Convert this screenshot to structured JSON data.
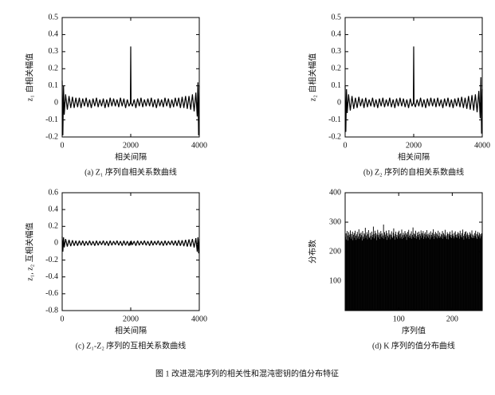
{
  "figure_caption": "图 1 改进混沌序列的相关性和混沌密钥的值分布特征",
  "chart_data": [
    {
      "type": "line",
      "caption": "(a) Z₁ 序列自相关系数曲线",
      "x_label": "相关间隔",
      "y_label": "z₁ 自相关幅值",
      "color": "#000000",
      "xlim": [
        0,
        4000
      ],
      "xticks": [
        0,
        2000,
        4000
      ],
      "ylim": [
        -0.2,
        0.5
      ],
      "yticks": [
        -0.2,
        -0.1,
        0,
        0.1,
        0.2,
        0.3,
        0.4,
        0.5
      ],
      "x": [
        0,
        20,
        40,
        60,
        100,
        150,
        200,
        250,
        300,
        350,
        400,
        450,
        500,
        550,
        600,
        650,
        700,
        750,
        800,
        850,
        900,
        950,
        1000,
        1050,
        1100,
        1150,
        1200,
        1250,
        1300,
        1350,
        1400,
        1450,
        1500,
        1550,
        1600,
        1650,
        1700,
        1750,
        1800,
        1850,
        1900,
        1950,
        1990,
        2000,
        2010,
        2050,
        2100,
        2150,
        2200,
        2250,
        2300,
        2350,
        2400,
        2450,
        2500,
        2550,
        2600,
        2650,
        2700,
        2750,
        2800,
        2850,
        2900,
        2950,
        3000,
        3050,
        3100,
        3150,
        3200,
        3250,
        3300,
        3350,
        3400,
        3450,
        3500,
        3550,
        3600,
        3650,
        3700,
        3750,
        3800,
        3850,
        3900,
        3940,
        3960,
        3980,
        4000
      ],
      "values": [
        0.13,
        -0.19,
        0.1,
        -0.07,
        0.05,
        -0.04,
        0.04,
        -0.03,
        0.035,
        -0.03,
        0.03,
        -0.025,
        0.03,
        -0.03,
        0.025,
        -0.02,
        0.03,
        -0.025,
        0.02,
        -0.03,
        0.025,
        -0.02,
        0.03,
        -0.025,
        0.02,
        -0.02,
        0.025,
        -0.03,
        0.02,
        -0.025,
        0.03,
        -0.02,
        0.025,
        -0.02,
        0.02,
        -0.025,
        0.03,
        -0.02,
        0.025,
        -0.03,
        0.02,
        -0.02,
        0.0,
        0.33,
        0.0,
        -0.02,
        0.02,
        -0.03,
        0.025,
        -0.02,
        0.03,
        -0.025,
        0.02,
        -0.02,
        0.025,
        -0.02,
        0.03,
        -0.025,
        0.02,
        -0.03,
        0.025,
        -0.02,
        0.02,
        -0.025,
        0.03,
        -0.02,
        0.025,
        -0.03,
        0.02,
        -0.025,
        0.03,
        -0.02,
        0.03,
        -0.03,
        0.035,
        -0.03,
        0.04,
        -0.035,
        0.04,
        -0.04,
        0.05,
        -0.05,
        0.06,
        -0.08,
        0.12,
        -0.19,
        0.1
      ]
    },
    {
      "type": "line",
      "caption": "(b) Z₂ 序列的自相关系数曲线",
      "x_label": "相关间隔",
      "y_label": "z₂ 自相关幅值",
      "color": "#000000",
      "xlim": [
        0,
        4000
      ],
      "xticks": [
        0,
        2000,
        4000
      ],
      "ylim": [
        -0.2,
        0.5
      ],
      "yticks": [
        -0.2,
        -0.1,
        0,
        0.1,
        0.2,
        0.3,
        0.4,
        0.5
      ],
      "x": [
        0,
        20,
        40,
        60,
        100,
        150,
        200,
        250,
        300,
        350,
        400,
        450,
        500,
        550,
        600,
        650,
        700,
        750,
        800,
        850,
        900,
        950,
        1000,
        1050,
        1100,
        1150,
        1200,
        1250,
        1300,
        1350,
        1400,
        1450,
        1500,
        1550,
        1600,
        1650,
        1700,
        1750,
        1800,
        1850,
        1900,
        1950,
        1990,
        2000,
        2010,
        2050,
        2100,
        2150,
        2200,
        2250,
        2300,
        2350,
        2400,
        2450,
        2500,
        2550,
        2600,
        2650,
        2700,
        2750,
        2800,
        2850,
        2900,
        2950,
        3000,
        3050,
        3100,
        3150,
        3200,
        3250,
        3300,
        3350,
        3400,
        3450,
        3500,
        3550,
        3600,
        3650,
        3700,
        3750,
        3800,
        3850,
        3900,
        3940,
        3960,
        3980,
        4000
      ],
      "values": [
        0.1,
        -0.17,
        0.08,
        -0.06,
        0.05,
        -0.045,
        0.04,
        -0.035,
        0.03,
        -0.03,
        0.035,
        -0.02,
        0.025,
        -0.03,
        0.03,
        -0.025,
        0.02,
        -0.02,
        0.03,
        -0.025,
        0.02,
        -0.03,
        0.025,
        -0.02,
        0.03,
        -0.025,
        0.02,
        -0.02,
        0.03,
        -0.025,
        0.02,
        -0.03,
        0.025,
        -0.02,
        0.03,
        -0.02,
        0.025,
        -0.025,
        0.02,
        -0.03,
        0.025,
        -0.02,
        0.0,
        0.33,
        0.0,
        -0.025,
        0.02,
        -0.02,
        0.03,
        -0.025,
        0.02,
        -0.03,
        0.025,
        -0.02,
        0.03,
        -0.02,
        0.025,
        -0.025,
        0.03,
        -0.02,
        0.02,
        -0.03,
        0.025,
        -0.02,
        0.03,
        -0.025,
        0.02,
        -0.03,
        0.025,
        -0.02,
        0.03,
        -0.025,
        0.035,
        -0.03,
        0.03,
        -0.035,
        0.04,
        -0.04,
        0.045,
        -0.045,
        0.05,
        -0.055,
        0.07,
        -0.09,
        0.15,
        -0.18,
        0.08
      ]
    },
    {
      "type": "line",
      "caption": "(c) Z₁-Z₂ 序列的互相关系数曲线",
      "x_label": "相关间隔",
      "y_label": "z₁, z₂ 互相关幅值",
      "color": "#000000",
      "xlim": [
        0,
        4000
      ],
      "xticks": [
        0,
        2000,
        4000
      ],
      "ylim": [
        -0.8,
        0.6
      ],
      "yticks": [
        -0.8,
        -0.6,
        -0.4,
        -0.2,
        0,
        0.2,
        0.4,
        0.6
      ],
      "x": [
        0,
        20,
        40,
        60,
        100,
        150,
        200,
        250,
        300,
        350,
        400,
        450,
        500,
        550,
        600,
        650,
        700,
        750,
        800,
        850,
        900,
        950,
        1000,
        1050,
        1100,
        1150,
        1200,
        1250,
        1300,
        1350,
        1400,
        1450,
        1500,
        1550,
        1600,
        1650,
        1700,
        1750,
        1800,
        1850,
        1900,
        1950,
        1990,
        2000,
        2010,
        2050,
        2100,
        2150,
        2200,
        2250,
        2300,
        2350,
        2400,
        2450,
        2500,
        2550,
        2600,
        2650,
        2700,
        2750,
        2800,
        2850,
        2900,
        2950,
        3000,
        3050,
        3100,
        3150,
        3200,
        3250,
        3300,
        3350,
        3400,
        3450,
        3500,
        3550,
        3600,
        3650,
        3700,
        3750,
        3800,
        3850,
        3900,
        3940,
        3960,
        3980,
        4000
      ],
      "values": [
        0.08,
        -0.1,
        0.07,
        -0.05,
        0.05,
        -0.04,
        0.04,
        -0.035,
        0.035,
        -0.03,
        0.03,
        -0.03,
        0.03,
        -0.025,
        0.03,
        -0.03,
        0.025,
        -0.025,
        0.03,
        -0.025,
        0.025,
        -0.03,
        0.03,
        -0.025,
        0.025,
        -0.02,
        0.03,
        -0.025,
        0.025,
        -0.03,
        0.03,
        -0.025,
        0.025,
        -0.02,
        0.03,
        -0.025,
        0.025,
        -0.03,
        0.03,
        -0.025,
        0.025,
        -0.03,
        0.02,
        -0.025,
        0.03,
        -0.02,
        0.025,
        -0.03,
        0.03,
        -0.025,
        0.025,
        -0.02,
        0.03,
        -0.025,
        0.025,
        -0.03,
        0.03,
        -0.025,
        0.025,
        -0.02,
        0.03,
        -0.025,
        0.025,
        -0.03,
        0.03,
        -0.025,
        0.025,
        -0.02,
        0.03,
        -0.025,
        0.03,
        -0.03,
        0.035,
        -0.03,
        0.035,
        -0.035,
        0.04,
        -0.04,
        0.045,
        -0.04,
        0.05,
        -0.05,
        0.06,
        -0.1,
        0.07,
        -0.12,
        0.05
      ]
    },
    {
      "type": "histogram",
      "caption": "(d) K 序列的值分布曲线",
      "x_label": "序列值",
      "y_label": "分布数",
      "color": "#000000",
      "xlim": [
        0,
        256
      ],
      "xticks": [
        100,
        200
      ],
      "ylim": [
        0,
        400
      ],
      "yticks": [
        100,
        200,
        300,
        400
      ],
      "bins": [
        0,
        1,
        2,
        3,
        4,
        5,
        6,
        7,
        8,
        9,
        10,
        11,
        12,
        13,
        14,
        15,
        16,
        17,
        18,
        19,
        20,
        21,
        22,
        23,
        24,
        25,
        26,
        27,
        28,
        29,
        30,
        31,
        32,
        33,
        34,
        35,
        36,
        37,
        38,
        39,
        40,
        41,
        42,
        43,
        44,
        45,
        46,
        47,
        48,
        49,
        50,
        51,
        52,
        53,
        54,
        55,
        56,
        57,
        58,
        59,
        60,
        61,
        62,
        63,
        64,
        65,
        66,
        67,
        68,
        69,
        70,
        71,
        72,
        73,
        74,
        75,
        76,
        77,
        78,
        79,
        80,
        81,
        82,
        83,
        84,
        85,
        86,
        87,
        88,
        89,
        90,
        91,
        92,
        93,
        94,
        95,
        96,
        97,
        98,
        99,
        100,
        101,
        102,
        103,
        104,
        105,
        106,
        107,
        108,
        109,
        110,
        111,
        112,
        113,
        114,
        115,
        116,
        117,
        118,
        119,
        120,
        121,
        122,
        123,
        124,
        125,
        126,
        127,
        128,
        129,
        130,
        131,
        132,
        133,
        134,
        135,
        136,
        137,
        138,
        139,
        140,
        141,
        142,
        143,
        144,
        145,
        146,
        147,
        148,
        149,
        150,
        151,
        152,
        153,
        154,
        155,
        156,
        157,
        158,
        159,
        160,
        161,
        162,
        163,
        164,
        165,
        166,
        167,
        168,
        169,
        170,
        171,
        172,
        173,
        174,
        175,
        176,
        177,
        178,
        179,
        180,
        181,
        182,
        183,
        184,
        185,
        186,
        187,
        188,
        189,
        190,
        191,
        192,
        193,
        194,
        195,
        196,
        197,
        198,
        199,
        200,
        201,
        202,
        203,
        204,
        205,
        206,
        207,
        208,
        209,
        210,
        211,
        212,
        213,
        214,
        215,
        216,
        217,
        218,
        219,
        220,
        221,
        222,
        223,
        224,
        225,
        226,
        227,
        228,
        229,
        230,
        231,
        232,
        233,
        234,
        235,
        236,
        237,
        238,
        239,
        240,
        241,
        242,
        243,
        244,
        245,
        246,
        247,
        248,
        249,
        250,
        251,
        252,
        253,
        254,
        255,
        256
      ],
      "values": [
        250,
        262,
        241,
        270,
        255,
        238,
        266,
        249,
        258,
        272,
        244,
        260,
        251,
        268,
        239,
        257,
        263,
        247,
        271,
        254,
        240,
        259,
        267,
        245,
        252,
        276,
        243,
        261,
        249,
        265,
        256,
        238,
        270,
        251,
        244,
        262,
        258,
        281,
        247,
        255,
        266,
        242,
        259,
        273,
        250,
        246,
        264,
        253,
        241,
        268,
        257,
        249,
        285,
        260,
        245,
        271,
        252,
        263,
        239,
        258,
        274,
        248,
        256,
        265,
        243,
        259,
        270,
        251,
        262,
        247,
        255,
        292,
        244,
        266,
        258,
        250,
        271,
        240,
        263,
        254,
        248,
        273,
        256,
        261,
        242,
        257,
        269,
        250,
        246,
        264,
        279,
        253,
        241,
        260,
        268,
        249,
        257,
        244,
        266,
        252,
        271,
        259,
        245,
        262,
        250,
        275,
        243,
        256,
        264,
        247,
        258,
        270,
        251,
        263,
        240,
        258,
        267,
        249,
        274,
        255,
        246,
        261,
        252,
        269,
        244,
        257,
        282,
        250,
        262,
        246,
        259,
        271,
        253,
        244,
        265,
        257,
        249,
        268,
        241,
        260,
        254,
        272,
        247,
        263,
        255,
        270,
        243,
        261,
        250,
        266,
        258,
        245,
        273,
        252,
        259,
        247,
        264,
        256,
        242,
        269,
        248,
        257,
        264,
        251,
        276,
        243,
        260,
        254,
        267,
        249,
        262,
        245,
        258,
        271,
        253,
        246,
        265,
        252,
        247,
        260,
        256,
        270,
        244,
        263,
        251,
        258,
        274,
        249,
        255,
        243,
        266,
        260,
        242,
        261,
        255,
        268,
        249,
        257,
        246,
        272,
        260,
        253,
        245,
        264,
        251,
        269,
        257,
        248,
        259,
        247,
        266,
        253,
        262,
        244,
        271,
        256,
        250,
        263,
        248,
        275,
        254,
        241,
        260,
        267,
        252,
        269,
        245,
        258,
        264,
        251,
        257,
        243,
        266,
        255,
        261,
        249,
        272,
        246,
        258,
        253,
        246,
        263,
        254,
        271,
        248,
        260,
        243,
        267,
        256,
        251,
        264,
        245,
        259,
        252,
        262,
        244
      ]
    }
  ]
}
